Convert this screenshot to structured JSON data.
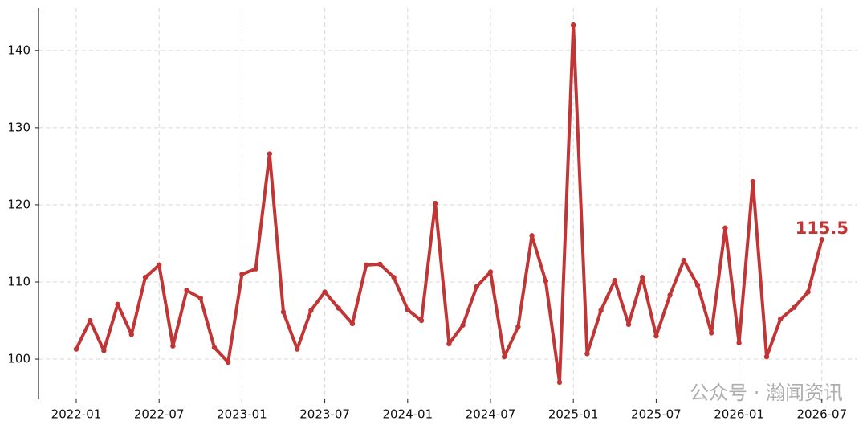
{
  "chart_data": {
    "type": "line",
    "categories": [
      "2022-01",
      null,
      null,
      null,
      null,
      null,
      "2022-07",
      null,
      null,
      null,
      null,
      null,
      "2023-01",
      null,
      null,
      null,
      null,
      null,
      "2023-07",
      null,
      null,
      null,
      null,
      null,
      "2024-01",
      null,
      null,
      null,
      null,
      null,
      "2024-07",
      null,
      null,
      null,
      null,
      null,
      "2025-01",
      null,
      null,
      null,
      null,
      null,
      "2025-07",
      null,
      null,
      null,
      null,
      null,
      "2026-01",
      null,
      null,
      null,
      null,
      null,
      "2026-07"
    ],
    "series": [
      {
        "color": "#c03535",
        "values": [
          101.3,
          105,
          101.1,
          107.1,
          103.2,
          110.6,
          112.2,
          101.7,
          108.9,
          107.9,
          101.5,
          99.6,
          111,
          111.7,
          126.6,
          106.1,
          101.3,
          106.3,
          108.7,
          106.6,
          104.6,
          112.2,
          112.3,
          110.6,
          106.4,
          105,
          120.2,
          102,
          104.4,
          109.4,
          111.3,
          100.3,
          104.2,
          116,
          110.1,
          97,
          143.3,
          100.7,
          106.3,
          110.2,
          104.5,
          110.6,
          103,
          108.3,
          112.8,
          109.6,
          103.4,
          117,
          102.1,
          123,
          100.3,
          105.2,
          106.7,
          108.7,
          115.5
        ]
      }
    ],
    "ylim": [
      94.8,
      145.5
    ],
    "yticks": [
      100,
      110,
      120,
      130,
      140
    ],
    "grid": true,
    "label_last": true,
    "watermark": "公众号 · 瀚闻资讯"
  }
}
